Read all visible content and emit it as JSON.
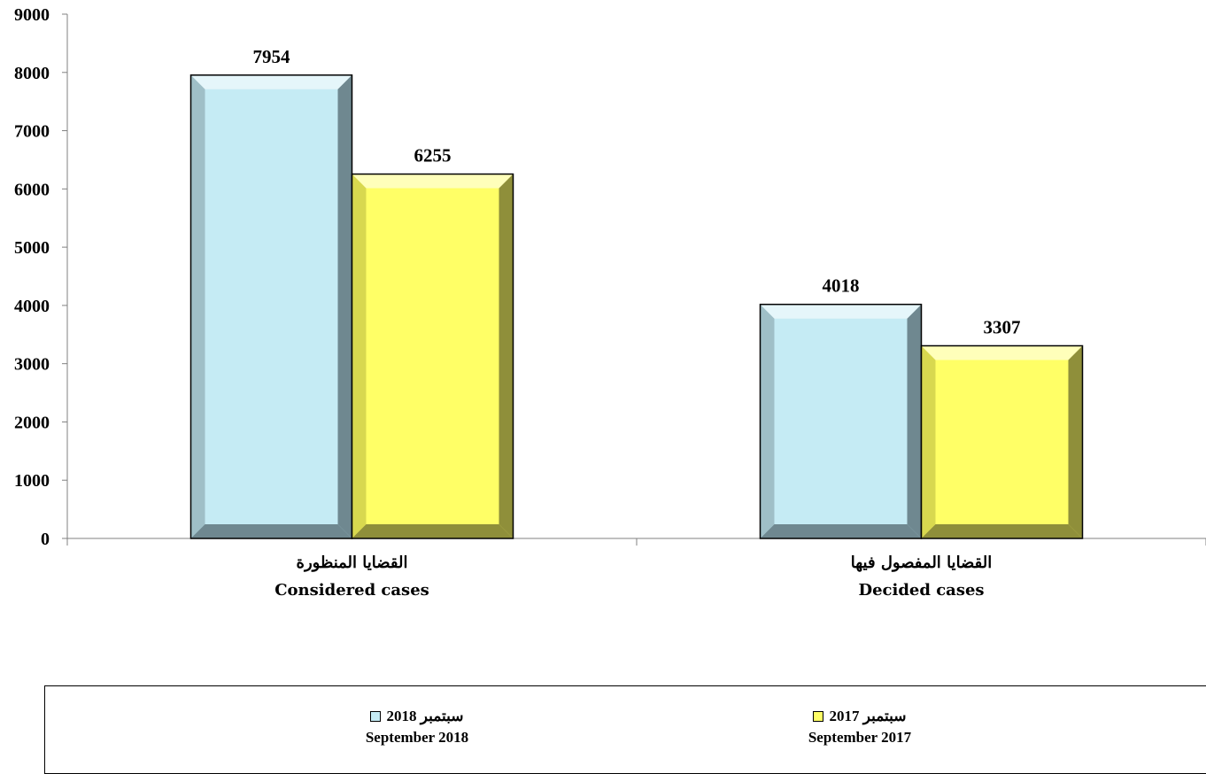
{
  "chart_data": {
    "type": "bar",
    "categories": [
      {
        "ar": "القضايا المنظورة",
        "en": "Considered cases"
      },
      {
        "ar": "القضايا المفصول فيها",
        "en": "Decided cases"
      }
    ],
    "series": [
      {
        "name_ar": "سبتمبر 2018",
        "name_en": "September 2018",
        "color": "#c5ebf4",
        "edge_dark": "#6f8890",
        "edge_light": "#9fbfc7",
        "values": [
          7954,
          4018
        ]
      },
      {
        "name_ar": "سبتمبر 2017",
        "name_en": "September 2017",
        "color": "#ffff66",
        "edge_dark": "#8f8f3a",
        "edge_light": "#d8d84f",
        "values": [
          6255,
          3307
        ]
      }
    ],
    "ylim": [
      0,
      9000
    ],
    "yticks": [
      0,
      1000,
      2000,
      3000,
      4000,
      5000,
      6000,
      7000,
      8000,
      9000
    ],
    "grid": false,
    "legend_position": "bottom"
  }
}
